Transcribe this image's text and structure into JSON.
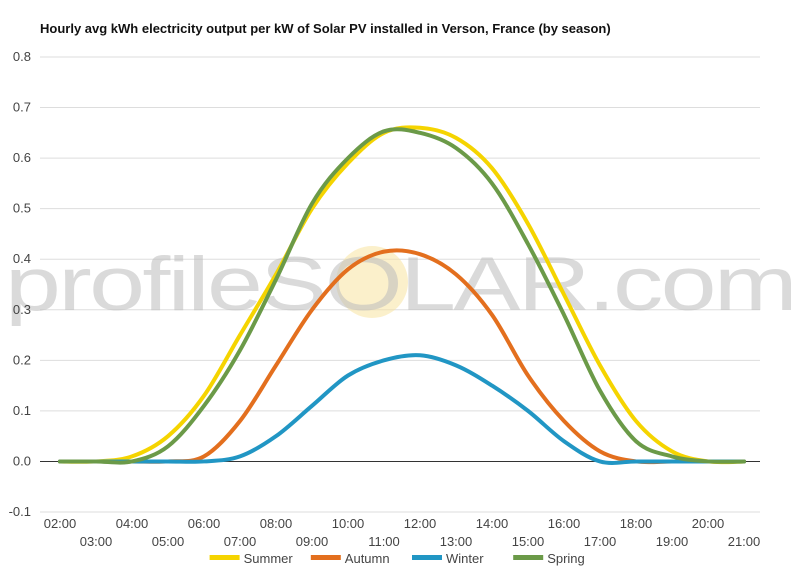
{
  "chart_data": {
    "type": "line",
    "title": "Hourly avg kWh electricity output per kW of Solar PV installed in Verson, France (by season)",
    "xlabel": "",
    "ylabel": "",
    "watermark": "profileSOLAR.com",
    "ylim": [
      -0.1,
      0.8
    ],
    "yticks": [
      "0.8",
      "0.7",
      "0.6",
      "0.5",
      "0.4",
      "0.3",
      "0.2",
      "0.1",
      "0.0",
      "-0.1"
    ],
    "ytick_values": [
      0.8,
      0.7,
      0.6,
      0.5,
      0.4,
      0.3,
      0.2,
      0.1,
      0.0,
      -0.1
    ],
    "x": [
      "02:00",
      "03:00",
      "04:00",
      "05:00",
      "06:00",
      "07:00",
      "08:00",
      "09:00",
      "10:00",
      "11:00",
      "12:00",
      "13:00",
      "14:00",
      "15:00",
      "16:00",
      "17:00",
      "18:00",
      "19:00",
      "20:00",
      "21:00"
    ],
    "grid": true,
    "legend_position": "bottom",
    "series": [
      {
        "name": "Summer",
        "color": "#f5d400",
        "values": [
          0.0,
          0.0,
          0.01,
          0.05,
          0.13,
          0.25,
          0.37,
          0.5,
          0.59,
          0.65,
          0.66,
          0.64,
          0.58,
          0.47,
          0.33,
          0.19,
          0.08,
          0.02,
          0.0,
          0.0
        ]
      },
      {
        "name": "Autumn",
        "color": "#e36f1e",
        "values": [
          0.0,
          0.0,
          0.0,
          0.0,
          0.01,
          0.08,
          0.19,
          0.3,
          0.38,
          0.415,
          0.41,
          0.37,
          0.29,
          0.17,
          0.08,
          0.02,
          0.0,
          0.0,
          0.0,
          0.0
        ]
      },
      {
        "name": "Winter",
        "color": "#2196c4",
        "values": [
          0.0,
          0.0,
          0.0,
          0.0,
          0.0,
          0.01,
          0.05,
          0.11,
          0.17,
          0.2,
          0.21,
          0.19,
          0.15,
          0.1,
          0.04,
          0.0,
          0.0,
          0.0,
          0.0,
          0.0
        ]
      },
      {
        "name": "Spring",
        "color": "#6b9a48",
        "values": [
          0.0,
          0.0,
          0.0,
          0.03,
          0.11,
          0.22,
          0.36,
          0.51,
          0.6,
          0.653,
          0.65,
          0.62,
          0.55,
          0.43,
          0.29,
          0.14,
          0.04,
          0.01,
          0.0,
          0.0
        ]
      }
    ]
  }
}
